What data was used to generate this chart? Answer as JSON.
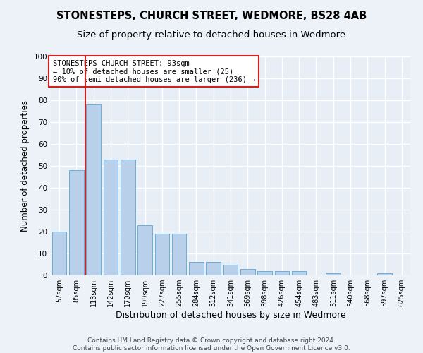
{
  "title": "STONESTEPS, CHURCH STREET, WEDMORE, BS28 4AB",
  "subtitle": "Size of property relative to detached houses in Wedmore",
  "xlabel": "Distribution of detached houses by size in Wedmore",
  "ylabel": "Number of detached properties",
  "categories": [
    "57sqm",
    "85sqm",
    "113sqm",
    "142sqm",
    "170sqm",
    "199sqm",
    "227sqm",
    "255sqm",
    "284sqm",
    "312sqm",
    "341sqm",
    "369sqm",
    "398sqm",
    "426sqm",
    "454sqm",
    "483sqm",
    "511sqm",
    "540sqm",
    "568sqm",
    "597sqm",
    "625sqm"
  ],
  "values": [
    20,
    48,
    78,
    53,
    53,
    23,
    19,
    19,
    6,
    6,
    5,
    3,
    2,
    2,
    2,
    0,
    1,
    0,
    0,
    1,
    0
  ],
  "bar_color": "#b8d0ea",
  "bar_edge_color": "#6aaed6",
  "background_color": "#e8eef6",
  "grid_color": "#ffffff",
  "vline_color": "#cc2222",
  "vline_x_index": 1,
  "annotation_text": "STONESTEPS CHURCH STREET: 93sqm\n← 10% of detached houses are smaller (25)\n90% of semi-detached houses are larger (236) →",
  "annotation_box_color": "#ffffff",
  "annotation_box_edge": "#cc2222",
  "footer_text": "Contains HM Land Registry data © Crown copyright and database right 2024.\nContains public sector information licensed under the Open Government Licence v3.0.",
  "ylim": [
    0,
    100
  ],
  "title_fontsize": 10.5,
  "subtitle_fontsize": 9.5,
  "xlabel_fontsize": 9,
  "ylabel_fontsize": 8.5,
  "tick_fontsize": 7,
  "annotation_fontsize": 7.5,
  "footer_fontsize": 6.5
}
